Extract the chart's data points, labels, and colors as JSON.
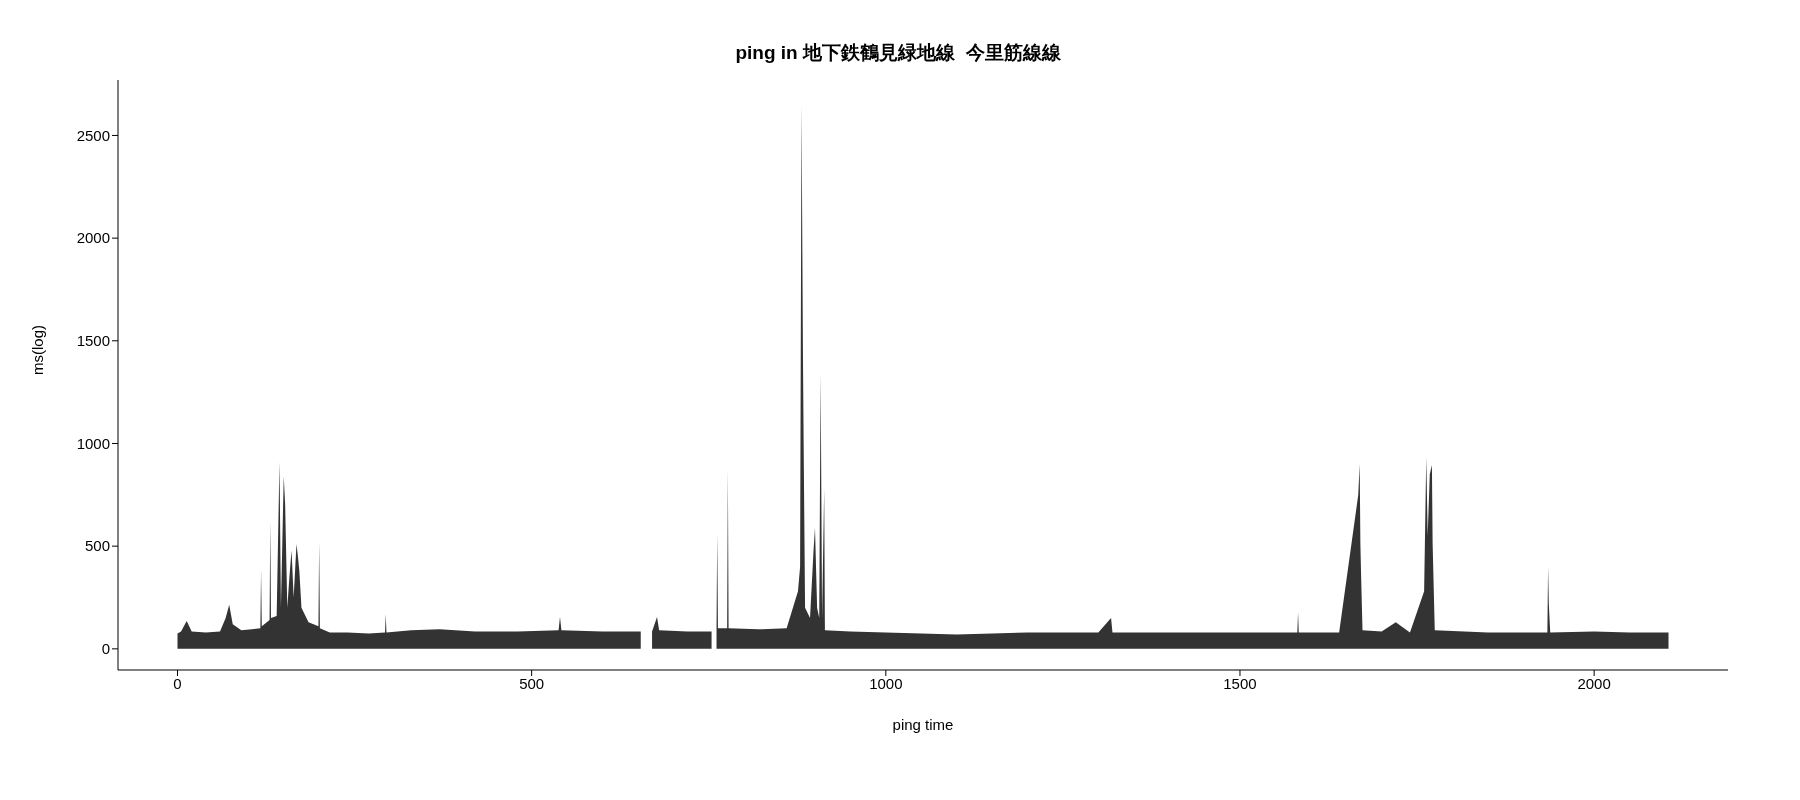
{
  "chart_data": {
    "type": "area",
    "title": "ping in 地下鉄鶴見緑地線  今里筋線線",
    "xlabel": "ping time",
    "ylabel": "ms(log)",
    "x": [
      0,
      5,
      13,
      20,
      40,
      60,
      68,
      73,
      78,
      90,
      105,
      117,
      118,
      119,
      130,
      131,
      132,
      140,
      144,
      146,
      150,
      152,
      155,
      158,
      161,
      164,
      168,
      170,
      172,
      175,
      185,
      199,
      200,
      201,
      215,
      240,
      270,
      293,
      294,
      295,
      330,
      370,
      420,
      480,
      538,
      540,
      542,
      600,
      654,
      662,
      670,
      677,
      680,
      720,
      754,
      758,
      761,
      762,
      763,
      776,
      777,
      778,
      820,
      860,
      876,
      879,
      881,
      882,
      883,
      884,
      886,
      893,
      898,
      900,
      903,
      906,
      908,
      910,
      913,
      914,
      950,
      1000,
      1050,
      1100,
      1150,
      1200,
      1250,
      1300,
      1318,
      1320,
      1400,
      1500,
      1581,
      1582,
      1583,
      1640,
      1667,
      1669,
      1670,
      1671,
      1673,
      1700,
      1720,
      1740,
      1760,
      1763,
      1765,
      1768,
      1771,
      1772,
      1775,
      1850,
      1900,
      1934,
      1935,
      1936,
      1938,
      2000,
      2050,
      2105
    ],
    "series": [
      {
        "color": "#333333",
        "values": [
          75,
          85,
          135,
          85,
          80,
          85,
          150,
          215,
          120,
          90,
          95,
          100,
          385,
          110,
          140,
          620,
          150,
          160,
          910,
          200,
          840,
          700,
          200,
          350,
          480,
          250,
          510,
          450,
          380,
          200,
          130,
          110,
          520,
          100,
          80,
          80,
          75,
          80,
          170,
          80,
          90,
          95,
          85,
          85,
          90,
          155,
          90,
          85,
          85,
          null,
          85,
          155,
          90,
          85,
          85,
          null,
          90,
          565,
          100,
          100,
          875,
          100,
          95,
          100,
          280,
          400,
          2650,
          2040,
          1440,
          1000,
          200,
          150,
          480,
          590,
          200,
          150,
          1340,
          150,
          780,
          90,
          85,
          80,
          75,
          70,
          75,
          80,
          80,
          80,
          150,
          80,
          80,
          80,
          80,
          180,
          80,
          80,
          750,
          900,
          510,
          360,
          90,
          85,
          130,
          80,
          280,
          935,
          550,
          850,
          895,
          510,
          90,
          80,
          80,
          80,
          400,
          220,
          80,
          85,
          80,
          80
        ]
      }
    ],
    "xlim": [
      -84,
      2189
    ],
    "xticks": [
      0,
      500,
      1000,
      1500,
      2000
    ],
    "ylim": [
      -103,
      2770
    ],
    "yticks": [
      0,
      500,
      1000,
      1500,
      2000,
      2500
    ],
    "grid": false,
    "legend": false
  }
}
